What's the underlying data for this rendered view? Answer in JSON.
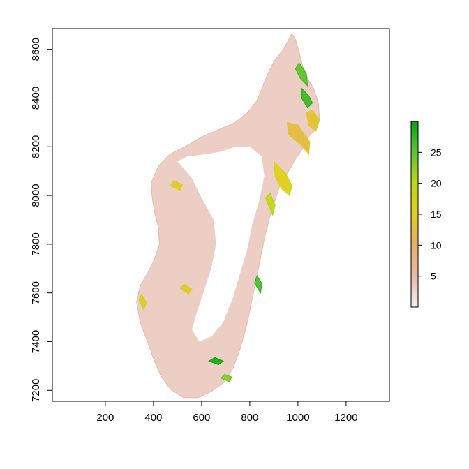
{
  "chart_data": {
    "type": "heatmap",
    "title": "",
    "xlabel": "",
    "ylabel": "",
    "xlim": [
      -20,
      1380
    ],
    "ylim": [
      7155,
      8685
    ],
    "x_ticks": [
      200,
      400,
      600,
      800,
      1000,
      1200
    ],
    "y_ticks": [
      7200,
      7400,
      7600,
      7800,
      8000,
      8200,
      8400,
      8600
    ],
    "grid": false,
    "colorbar": {
      "range": [
        0,
        30
      ],
      "ticks": [
        5,
        10,
        15,
        20,
        25
      ],
      "palette": [
        "#f5f0ee",
        "#e8b8a8",
        "#e8b060",
        "#e0d020",
        "#b8d818",
        "#58c038",
        "#08a010"
      ]
    },
    "island_outline": [
      [
        975,
        8665
      ],
      [
        990,
        8640
      ],
      [
        1005,
        8590
      ],
      [
        1020,
        8530
      ],
      [
        1040,
        8480
      ],
      [
        1065,
        8440
      ],
      [
        1085,
        8380
      ],
      [
        1090,
        8310
      ],
      [
        1075,
        8270
      ],
      [
        1050,
        8250
      ],
      [
        1025,
        8200
      ],
      [
        990,
        8150
      ],
      [
        955,
        8090
      ],
      [
        925,
        8040
      ],
      [
        905,
        7980
      ],
      [
        880,
        7900
      ],
      [
        860,
        7820
      ],
      [
        840,
        7720
      ],
      [
        815,
        7600
      ],
      [
        790,
        7480
      ],
      [
        760,
        7370
      ],
      [
        730,
        7290
      ],
      [
        690,
        7230
      ],
      [
        640,
        7195
      ],
      [
        585,
        7170
      ],
      [
        525,
        7170
      ],
      [
        470,
        7205
      ],
      [
        430,
        7260
      ],
      [
        400,
        7330
      ],
      [
        375,
        7400
      ],
      [
        345,
        7480
      ],
      [
        330,
        7560
      ],
      [
        345,
        7630
      ],
      [
        375,
        7680
      ],
      [
        405,
        7740
      ],
      [
        425,
        7800
      ],
      [
        420,
        7870
      ],
      [
        405,
        7930
      ],
      [
        395,
        7990
      ],
      [
        390,
        8050
      ],
      [
        420,
        8120
      ],
      [
        470,
        8170
      ],
      [
        530,
        8200
      ],
      [
        600,
        8240
      ],
      [
        670,
        8270
      ],
      [
        740,
        8300
      ],
      [
        790,
        8340
      ],
      [
        830,
        8390
      ],
      [
        855,
        8450
      ],
      [
        875,
        8500
      ],
      [
        900,
        8550
      ],
      [
        940,
        8600
      ],
      [
        975,
        8665
      ]
    ],
    "interior_sparse": [
      [
        500,
        8140
      ],
      [
        560,
        8070
      ],
      [
        600,
        7990
      ],
      [
        650,
        7900
      ],
      [
        660,
        7800
      ],
      [
        640,
        7700
      ],
      [
        610,
        7610
      ],
      [
        580,
        7520
      ],
      [
        560,
        7450
      ],
      [
        590,
        7400
      ],
      [
        640,
        7420
      ],
      [
        690,
        7480
      ],
      [
        730,
        7580
      ],
      [
        760,
        7680
      ],
      [
        790,
        7780
      ],
      [
        810,
        7880
      ],
      [
        840,
        7980
      ],
      [
        860,
        8080
      ],
      [
        850,
        8160
      ],
      [
        800,
        8200
      ],
      [
        740,
        8200
      ],
      [
        680,
        8180
      ],
      [
        620,
        8170
      ],
      [
        540,
        8160
      ]
    ],
    "high_zones": [
      {
        "points": [
          [
            960,
            8250
          ],
          [
            1010,
            8210
          ],
          [
            1045,
            8170
          ],
          [
            1050,
            8220
          ],
          [
            1000,
            8290
          ],
          [
            955,
            8300
          ]
        ],
        "level": 12
      },
      {
        "points": [
          [
            1060,
            8350
          ],
          [
            1090,
            8310
          ],
          [
            1075,
            8265
          ],
          [
            1045,
            8285
          ],
          [
            1035,
            8340
          ]
        ],
        "level": 13
      },
      {
        "points": [
          [
            900,
            8140
          ],
          [
            950,
            8090
          ],
          [
            975,
            8040
          ],
          [
            965,
            8000
          ],
          [
            930,
            8030
          ],
          [
            905,
            8080
          ]
        ],
        "level": 15
      },
      {
        "points": [
          [
            865,
            7990
          ],
          [
            895,
            7920
          ],
          [
            905,
            7960
          ],
          [
            885,
            8010
          ]
        ],
        "level": 18
      },
      {
        "points": [
          [
            990,
            8520
          ],
          [
            1010,
            8480
          ],
          [
            1040,
            8450
          ],
          [
            1035,
            8500
          ],
          [
            1005,
            8545
          ]
        ],
        "level": 24
      },
      {
        "points": [
          [
            1015,
            8440
          ],
          [
            1045,
            8410
          ],
          [
            1060,
            8380
          ],
          [
            1040,
            8360
          ],
          [
            1015,
            8400
          ]
        ],
        "level": 26
      },
      {
        "points": [
          [
            630,
            7320
          ],
          [
            670,
            7305
          ],
          [
            690,
            7320
          ],
          [
            655,
            7335
          ]
        ],
        "level": 28
      },
      {
        "points": [
          [
            680,
            7250
          ],
          [
            715,
            7235
          ],
          [
            725,
            7255
          ],
          [
            695,
            7265
          ]
        ],
        "level": 22
      },
      {
        "points": [
          [
            510,
            7620
          ],
          [
            545,
            7595
          ],
          [
            560,
            7615
          ],
          [
            530,
            7635
          ]
        ],
        "level": 14
      },
      {
        "points": [
          [
            340,
            7570
          ],
          [
            360,
            7530
          ],
          [
            370,
            7560
          ],
          [
            350,
            7595
          ]
        ],
        "level": 16
      },
      {
        "points": [
          [
            470,
            8040
          ],
          [
            510,
            8020
          ],
          [
            520,
            8045
          ],
          [
            485,
            8060
          ]
        ],
        "level": 14
      },
      {
        "points": [
          [
            820,
            7640
          ],
          [
            845,
            7600
          ],
          [
            850,
            7640
          ],
          [
            830,
            7670
          ]
        ],
        "level": 25
      }
    ]
  }
}
